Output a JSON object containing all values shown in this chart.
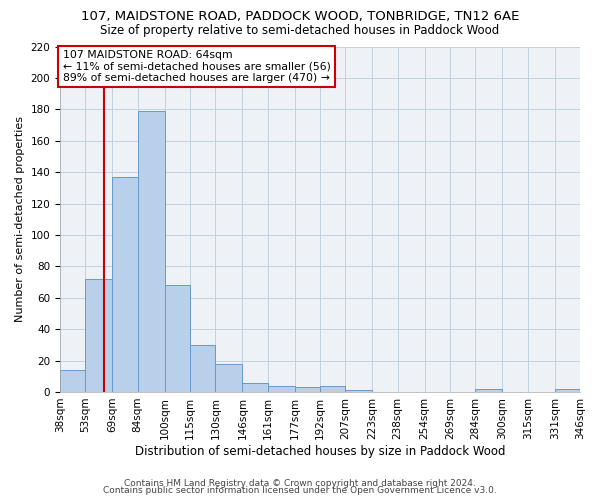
{
  "title1": "107, MAIDSTONE ROAD, PADDOCK WOOD, TONBRIDGE, TN12 6AE",
  "title2": "Size of property relative to semi-detached houses in Paddock Wood",
  "xlabel": "Distribution of semi-detached houses by size in Paddock Wood",
  "ylabel": "Number of semi-detached properties",
  "footer1": "Contains HM Land Registry data © Crown copyright and database right 2024.",
  "footer2": "Contains public sector information licensed under the Open Government Licence v3.0.",
  "annotation_line1": "107 MAIDSTONE ROAD: 64sqm",
  "annotation_line2": "← 11% of semi-detached houses are smaller (56)",
  "annotation_line3": "89% of semi-detached houses are larger (470) →",
  "bin_edges": [
    38,
    53,
    69,
    84,
    100,
    115,
    130,
    146,
    161,
    177,
    192,
    207,
    223,
    238,
    254,
    269,
    284,
    300,
    315,
    331,
    346
  ],
  "bar_heights": [
    14,
    72,
    137,
    179,
    68,
    30,
    18,
    6,
    4,
    3,
    4,
    1,
    0,
    0,
    0,
    0,
    2,
    0,
    0,
    2
  ],
  "bar_color": "#b8d0ea",
  "bar_edge_color": "#6699cc",
  "xlabels": [
    "38sqm",
    "53sqm",
    "69sqm",
    "84sqm",
    "100sqm",
    "115sqm",
    "130sqm",
    "146sqm",
    "161sqm",
    "177sqm",
    "192sqm",
    "207sqm",
    "223sqm",
    "238sqm",
    "254sqm",
    "269sqm",
    "284sqm",
    "300sqm",
    "315sqm",
    "331sqm",
    "346sqm"
  ],
  "ylim": [
    0,
    220
  ],
  "yticks": [
    0,
    20,
    40,
    60,
    80,
    100,
    120,
    140,
    160,
    180,
    200,
    220
  ],
  "property_size": 64,
  "vline_color": "#cc0000",
  "grid_color": "#c0d0e0",
  "bg_color": "#eef2f7",
  "annotation_box_color": "#cc0000",
  "title1_fontsize": 9.5,
  "title2_fontsize": 8.5,
  "xlabel_fontsize": 8.5,
  "ylabel_fontsize": 8.0,
  "tick_fontsize": 7.5,
  "footer_fontsize": 6.5
}
